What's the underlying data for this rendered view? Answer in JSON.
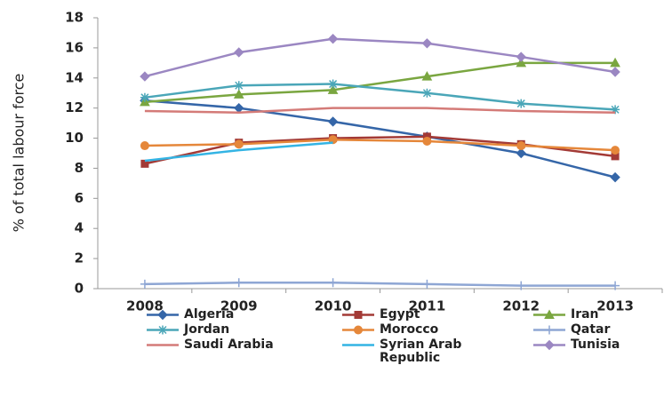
{
  "chart_data": {
    "type": "line",
    "y_label": "% of total labour force",
    "categories": [
      "2008",
      "2009",
      "2010",
      "2011",
      "2012",
      "2013"
    ],
    "ylim": [
      0,
      18
    ],
    "yticks": [
      0,
      2,
      4,
      6,
      8,
      10,
      12,
      14,
      16,
      18
    ],
    "grid": false,
    "legend": "bottom",
    "series": [
      {
        "name": "Algeria",
        "color": "#3566a8",
        "marker": "diamond",
        "values": [
          12.5,
          12.0,
          11.1,
          10.1,
          9.0,
          7.4
        ]
      },
      {
        "name": "Egypt",
        "color": "#a33a36",
        "marker": "square",
        "values": [
          8.3,
          9.7,
          10.0,
          10.1,
          9.6,
          8.8
        ]
      },
      {
        "name": "Iran",
        "color": "#7aa640",
        "marker": "triangle",
        "values": [
          12.4,
          12.9,
          13.2,
          14.1,
          15.0,
          15.0
        ]
      },
      {
        "name": "Jordan",
        "color": "#4aa6b8",
        "marker": "star",
        "values": [
          12.7,
          13.5,
          13.6,
          13.0,
          12.3,
          11.9
        ]
      },
      {
        "name": "Morocco",
        "color": "#e5873a",
        "marker": "circle",
        "values": [
          9.5,
          9.6,
          9.9,
          9.8,
          9.5,
          9.2
        ]
      },
      {
        "name": "Qatar",
        "color": "#8ea6d4",
        "marker": "plus",
        "values": [
          0.3,
          0.4,
          0.4,
          0.3,
          0.2,
          0.2
        ]
      },
      {
        "name": "Saudi Arabia",
        "color": "#d47b78",
        "marker": "none",
        "values": [
          11.8,
          11.7,
          12.0,
          12.0,
          11.8,
          11.7
        ]
      },
      {
        "name": "Syrian Arab Republic",
        "color": "#34b4e4",
        "marker": "none",
        "values": [
          8.5,
          9.2,
          9.7,
          null,
          null,
          null
        ]
      },
      {
        "name": "Tunisia",
        "color": "#9b87c2",
        "marker": "diamond",
        "values": [
          14.1,
          15.7,
          16.6,
          16.3,
          15.4,
          14.4
        ]
      }
    ]
  }
}
